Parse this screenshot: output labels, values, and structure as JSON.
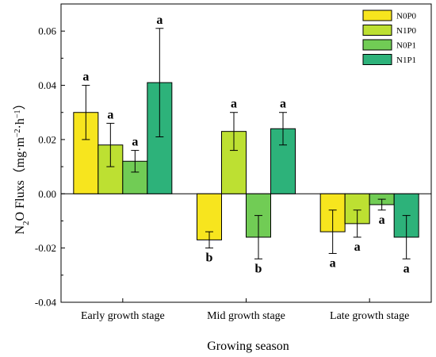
{
  "chart_data": {
    "type": "bar",
    "categories": [
      "Early growth stage",
      "Mid growth stage",
      "Late growth stage"
    ],
    "series": [
      {
        "name": "N0P0",
        "color": "#f7e51e",
        "values": [
          0.03,
          -0.017,
          -0.014
        ],
        "errors": [
          0.01,
          0.003,
          0.008
        ],
        "letters": [
          "a",
          "b",
          "a"
        ]
      },
      {
        "name": "N1P0",
        "color": "#bde032",
        "values": [
          0.018,
          0.023,
          -0.011
        ],
        "errors": [
          0.008,
          0.007,
          0.005
        ],
        "letters": [
          "a",
          "a",
          "a"
        ]
      },
      {
        "name": "N0P1",
        "color": "#71cc55",
        "values": [
          0.012,
          -0.016,
          -0.004
        ],
        "errors": [
          0.004,
          0.008,
          0.002
        ],
        "letters": [
          "a",
          "b",
          "a"
        ]
      },
      {
        "name": "N1P1",
        "color": "#2db27a",
        "values": [
          0.041,
          0.024,
          -0.016
        ],
        "errors": [
          0.02,
          0.006,
          0.008
        ],
        "letters": [
          "a",
          "a",
          "a"
        ]
      }
    ],
    "xlabel": "Growing season",
    "ylabel_parts": {
      "n": "N",
      "sub2": "2",
      "mid": "O Fluxs（mg·m",
      "sup1": "−2",
      "dot": "·h",
      "sup2": "−1",
      "end": "）"
    },
    "yticks": [
      0.06,
      0.04,
      0.02,
      0.0,
      -0.02,
      -0.04
    ],
    "ytick_labels": [
      "0.06",
      "0.04",
      "0.02",
      "0.00",
      "-0.02",
      "-0.04"
    ],
    "ylim": [
      -0.04,
      0.07
    ],
    "zero_line": true,
    "grid": false,
    "legend_position": "top-right"
  }
}
